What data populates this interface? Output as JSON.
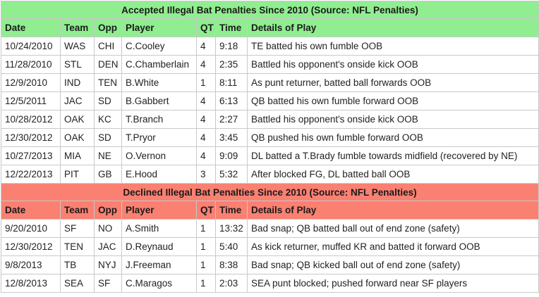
{
  "accepted": {
    "title": "Accepted Illegal Bat Penalties Since 2010 (Source: NFL Penalties)",
    "color": "#90ee90",
    "headers": [
      "Date",
      "Team",
      "Opp",
      "Player",
      "QT",
      "Time",
      "Details of Play"
    ],
    "rows": [
      [
        "10/24/2010",
        "WAS",
        "CHI",
        "C.Cooley",
        "4",
        "9:18",
        "TE batted his own fumble OOB"
      ],
      [
        "11/28/2010",
        "STL",
        "DEN",
        "C.Chamberlain",
        "4",
        "2:35",
        "Battled his opponent's onside kick OOB"
      ],
      [
        "12/9/2010",
        "IND",
        "TEN",
        "B.White",
        "1",
        "8:11",
        "As punt returner, batted ball forwards OOB"
      ],
      [
        "12/5/2011",
        "JAC",
        "SD",
        "B.Gabbert",
        "4",
        "6:13",
        "QB batted his own fumble forward OOB"
      ],
      [
        "10/28/2012",
        "OAK",
        "KC",
        "T.Branch",
        "4",
        "2:27",
        "Battled his opponent's onside kick OOB"
      ],
      [
        "12/30/2012",
        "OAK",
        "SD",
        "T.Pryor",
        "4",
        "3:45",
        "QB pushed his own fumble forward OOB"
      ],
      [
        "10/27/2013",
        "MIA",
        "NE",
        "O.Vernon",
        "4",
        "9:09",
        "DL batted a T.Brady fumble towards midfield (recovered by NE)"
      ],
      [
        "12/22/2013",
        "PIT",
        "GB",
        "E.Hood",
        "3",
        "5:32",
        "After blocked FG, DL batted ball OOB"
      ]
    ]
  },
  "declined": {
    "title": "Declined Illegal Bat Penalties Since 2010 (Source: NFL Penalties)",
    "color": "#fa8072",
    "headers": [
      "Date",
      "Team",
      "Opp",
      "Player",
      "QT",
      "Time",
      "Details of Play"
    ],
    "rows": [
      [
        "9/20/2010",
        "SF",
        "NO",
        "A.Smith",
        "1",
        "13:32",
        "Bad snap; QB batted ball out of end zone (safety)"
      ],
      [
        "12/30/2012",
        "TEN",
        "JAC",
        "D.Reynaud",
        "1",
        "5:40",
        "As kick returner, muffed KR and batted it forward OOB"
      ],
      [
        "9/8/2013",
        "TB",
        "NYJ",
        "J.Freeman",
        "1",
        "8:38",
        "Bad snap; QB kicked ball out of end zone (safety)"
      ],
      [
        "12/8/2013",
        "SEA",
        "SF",
        "C.Maragos",
        "1",
        "2:03",
        "SEA punt blocked; pushed forward near SF players"
      ]
    ]
  }
}
